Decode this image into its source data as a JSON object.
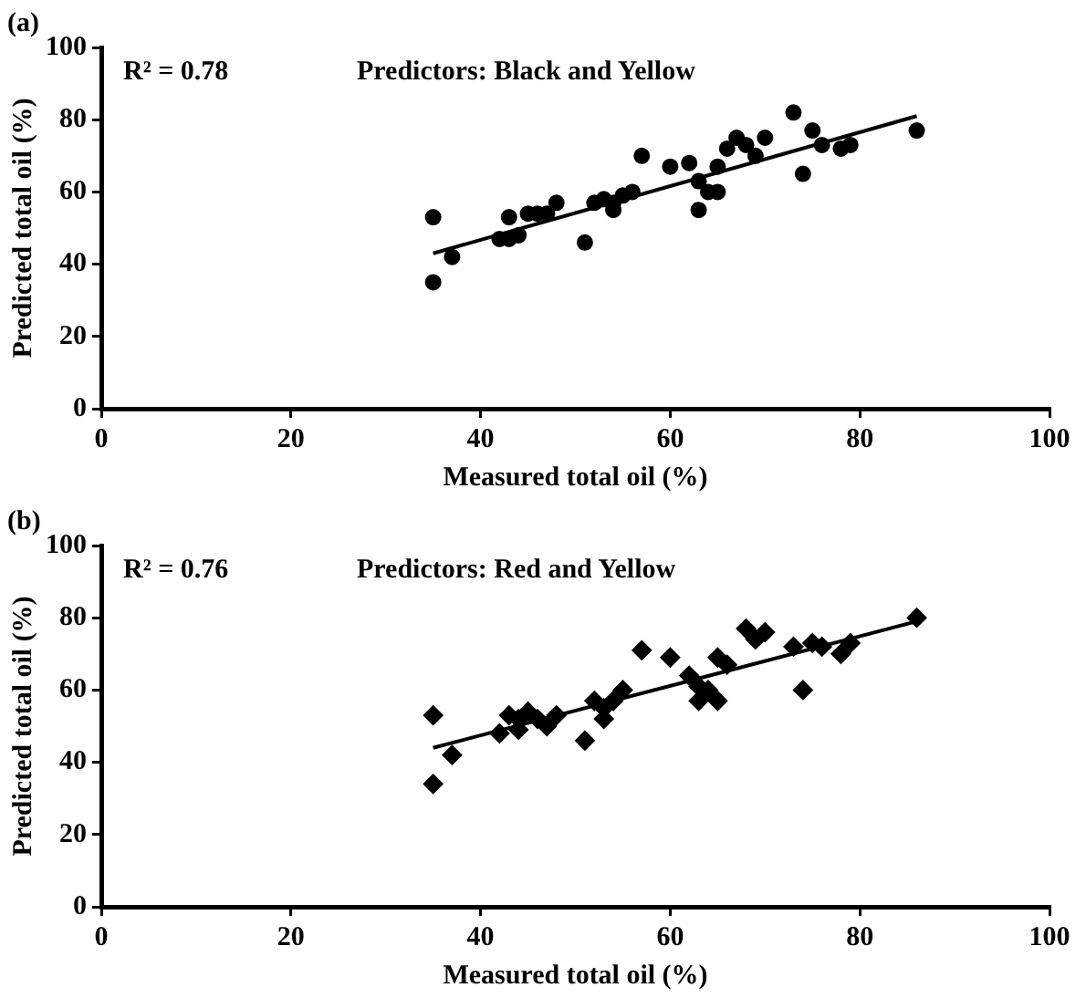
{
  "chart_data": [
    {
      "type": "scatter",
      "title": "(a)",
      "xlabel": "Measured total oil (%)",
      "ylabel": "Predicted total oil (%)",
      "annotations": [
        "R² = 0.78",
        "Predictors: Black and Yellow"
      ],
      "xlim": [
        0,
        100
      ],
      "ylim": [
        0,
        100
      ],
      "xticks": [
        0,
        20,
        40,
        60,
        80,
        100
      ],
      "yticks": [
        0,
        20,
        40,
        60,
        80,
        100
      ],
      "grid": false,
      "legend": false,
      "series": [
        {
          "color": "#000000",
          "marker": "circle",
          "x": [
            35,
            35,
            37,
            42,
            43,
            43,
            44,
            45,
            46,
            47,
            48,
            51,
            52,
            53,
            54,
            54,
            55,
            56,
            57,
            60,
            62,
            63,
            63,
            64,
            65,
            65,
            66,
            67,
            68,
            69,
            70,
            73,
            74,
            75,
            76,
            78,
            79,
            86
          ],
          "values": [
            53,
            35,
            42,
            47,
            53,
            47,
            48,
            54,
            54,
            54,
            57,
            46,
            57,
            58,
            55,
            57,
            59,
            60,
            70,
            67,
            68,
            55,
            63,
            60,
            60,
            67,
            72,
            75,
            73,
            70,
            75,
            82,
            65,
            77,
            73,
            72,
            73,
            77
          ]
        },
        {
          "type": "line",
          "color": "#000000",
          "marker": "none",
          "x": [
            35,
            86
          ],
          "values": [
            43,
            81
          ]
        }
      ]
    },
    {
      "type": "scatter",
      "title": "(b)",
      "xlabel": "Measured total oil (%)",
      "ylabel": "Predicted total oil (%)",
      "annotations": [
        "R² = 0.76",
        "Predictors: Red and Yellow"
      ],
      "xlim": [
        0,
        100
      ],
      "ylim": [
        0,
        100
      ],
      "xticks": [
        0,
        20,
        40,
        60,
        80,
        100
      ],
      "yticks": [
        0,
        20,
        40,
        60,
        80,
        100
      ],
      "grid": false,
      "legend": false,
      "series": [
        {
          "color": "#000000",
          "marker": "diamond",
          "x": [
            35,
            35,
            37,
            42,
            43,
            44,
            44,
            45,
            46,
            47,
            48,
            51,
            52,
            53,
            53,
            54,
            55,
            57,
            60,
            62,
            63,
            63,
            64,
            65,
            65,
            66,
            68,
            69,
            70,
            73,
            74,
            75,
            76,
            78,
            79,
            86
          ],
          "values": [
            53,
            34,
            42,
            48,
            53,
            49,
            52,
            54,
            52,
            50,
            53,
            46,
            57,
            52,
            55,
            57,
            60,
            71,
            69,
            64,
            61,
            57,
            60,
            57,
            69,
            67,
            77,
            74,
            76,
            72,
            60,
            73,
            72,
            70,
            73,
            80
          ]
        },
        {
          "type": "line",
          "color": "#000000",
          "marker": "none",
          "x": [
            35,
            86
          ],
          "values": [
            44,
            79
          ]
        }
      ]
    }
  ]
}
